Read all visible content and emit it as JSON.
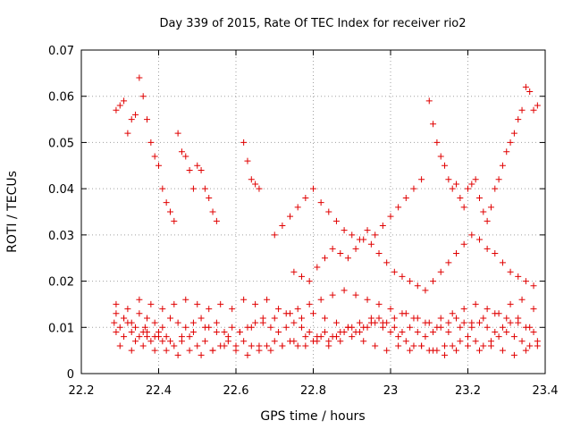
{
  "chart_data": {
    "type": "scatter",
    "title": "Day 339 of 2015, Rate Of TEC Index for receiver rio2",
    "xlabel": "GPS time / hours",
    "ylabel": "ROTI / TECUs",
    "xlim": [
      22.2,
      23.4
    ],
    "ylim": [
      0,
      0.07
    ],
    "x_ticks": [
      "22.2",
      "22.4",
      "22.6",
      "22.8",
      "23",
      "23.2",
      "23.4"
    ],
    "y_ticks": [
      "0",
      "0.01",
      "0.02",
      "0.03",
      "0.04",
      "0.05",
      "0.06",
      "0.07"
    ],
    "grid": true,
    "marker": "+",
    "color": "#e00000",
    "series": [
      {
        "x": [
          22.285,
          22.29,
          22.3,
          22.31,
          22.32,
          22.33,
          22.34,
          22.35,
          22.36,
          22.365,
          22.37,
          22.38,
          22.39,
          22.4,
          22.41,
          22.42,
          22.44,
          22.46,
          22.48,
          22.5,
          22.52,
          22.54,
          22.56,
          22.58,
          22.6,
          22.62,
          22.64,
          22.66,
          22.68,
          22.7,
          22.72,
          22.74,
          22.76,
          22.78,
          22.8,
          22.82,
          22.84,
          22.86,
          22.88,
          22.9,
          22.92,
          22.94,
          22.96,
          22.98,
          23.0,
          23.02,
          23.04,
          23.06,
          23.08,
          23.1,
          23.12,
          23.14,
          23.16,
          23.18,
          23.2,
          23.22,
          23.24,
          23.26,
          23.28,
          23.3,
          23.32,
          23.34,
          23.36,
          23.38,
          22.29,
          22.31,
          22.33,
          22.35,
          22.37,
          22.39,
          22.41,
          22.43,
          22.45,
          22.47,
          22.49,
          22.51,
          22.53,
          22.55,
          22.57,
          22.59,
          22.61,
          22.63,
          22.65,
          22.67,
          22.69,
          22.71,
          22.73,
          22.75,
          22.77,
          22.79,
          22.81,
          22.83,
          22.85,
          22.87,
          22.89,
          22.91,
          22.93,
          22.95,
          22.97,
          22.99,
          23.01,
          23.03,
          23.05,
          23.07,
          23.09,
          23.11,
          23.13,
          23.15,
          23.17,
          23.19,
          23.21,
          23.23,
          23.25,
          23.27,
          23.29,
          23.31,
          23.33,
          23.35,
          23.37,
          22.29,
          22.32,
          22.35,
          22.38,
          22.41,
          22.44,
          22.47,
          22.5,
          22.53,
          22.56,
          22.59,
          22.62,
          22.65,
          22.68,
          22.71,
          22.74,
          22.77,
          22.8,
          22.83,
          22.86,
          22.89,
          22.92,
          22.95,
          22.98,
          23.01,
          23.04,
          23.07,
          23.1,
          23.13,
          23.16,
          23.19,
          23.22,
          23.25,
          23.28,
          23.31,
          23.34,
          23.37,
          22.3,
          22.33,
          22.36,
          22.39,
          22.42,
          22.45,
          22.48,
          22.51,
          22.54,
          22.57,
          22.6,
          22.63,
          22.66,
          22.69,
          22.72,
          22.75,
          22.78,
          22.81,
          22.84,
          22.87,
          22.9,
          22.93,
          22.96,
          22.99,
          23.02,
          23.05,
          23.08,
          23.11,
          23.14,
          23.17,
          23.2,
          23.23,
          23.26,
          23.29,
          23.32,
          23.35,
          23.38,
          22.31,
          22.34,
          22.37,
          22.4,
          22.43,
          22.46,
          22.49,
          22.52,
          22.55,
          22.58,
          22.61,
          22.64,
          22.67,
          22.7,
          22.73,
          22.76,
          22.79,
          22.82,
          22.85,
          22.88,
          22.91,
          22.94,
          22.97,
          23.0,
          23.03,
          23.06,
          23.09,
          23.12,
          23.15,
          23.18,
          23.21,
          23.24,
          23.27,
          23.3,
          23.33,
          23.36,
          22.29,
          22.3,
          22.31,
          22.32,
          22.33,
          22.34,
          22.35,
          22.36,
          22.37,
          22.38,
          22.39,
          22.4,
          22.41,
          22.42,
          22.43,
          22.44,
          22.45,
          22.46,
          22.47,
          22.48,
          22.49,
          22.5,
          22.51,
          22.52,
          22.53,
          22.54,
          22.55,
          22.62,
          22.63,
          22.64,
          22.65,
          22.66,
          23.1,
          23.11,
          23.12,
          23.13,
          23.14,
          23.15,
          23.16,
          23.17,
          23.18,
          23.19,
          23.2,
          23.21,
          23.22,
          23.23,
          23.24,
          23.25,
          23.26,
          23.27,
          23.28,
          23.29,
          23.3,
          23.31,
          23.32,
          23.33,
          23.34,
          23.35,
          23.36,
          23.37,
          23.38,
          22.7,
          22.72,
          22.74,
          22.76,
          22.78,
          22.8,
          22.82,
          22.84,
          22.86,
          22.88,
          22.9,
          22.92,
          22.94,
          22.96,
          22.98,
          23.0,
          23.02,
          23.04,
          23.06,
          23.08,
          22.75,
          22.77,
          22.79,
          22.81,
          22.83,
          22.85,
          22.87,
          22.89,
          22.91,
          22.93,
          22.95,
          22.97,
          22.99,
          23.01,
          23.03,
          23.05,
          23.07,
          23.09,
          23.11,
          23.13,
          23.15,
          23.17,
          23.19,
          23.21,
          23.23,
          23.25,
          23.27,
          23.29,
          23.31,
          23.33,
          23.35,
          23.37
        ],
        "y": [
          0.011,
          0.009,
          0.01,
          0.012,
          0.011,
          0.009,
          0.01,
          0.008,
          0.009,
          0.01,
          0.008,
          0.007,
          0.008,
          0.009,
          0.007,
          0.008,
          0.006,
          0.007,
          0.008,
          0.006,
          0.007,
          0.005,
          0.006,
          0.007,
          0.006,
          0.007,
          0.006,
          0.005,
          0.006,
          0.007,
          0.006,
          0.007,
          0.006,
          0.008,
          0.007,
          0.008,
          0.007,
          0.008,
          0.009,
          0.01,
          0.009,
          0.01,
          0.011,
          0.01,
          0.009,
          0.008,
          0.007,
          0.006,
          0.006,
          0.005,
          0.005,
          0.006,
          0.006,
          0.007,
          0.008,
          0.007,
          0.006,
          0.007,
          0.008,
          0.009,
          0.008,
          0.007,
          0.006,
          0.007,
          0.013,
          0.012,
          0.011,
          0.013,
          0.012,
          0.011,
          0.01,
          0.012,
          0.011,
          0.01,
          0.011,
          0.012,
          0.01,
          0.011,
          0.009,
          0.01,
          0.009,
          0.01,
          0.011,
          0.012,
          0.01,
          0.009,
          0.01,
          0.011,
          0.01,
          0.009,
          0.008,
          0.009,
          0.008,
          0.009,
          0.01,
          0.009,
          0.01,
          0.011,
          0.012,
          0.011,
          0.01,
          0.009,
          0.01,
          0.009,
          0.008,
          0.009,
          0.01,
          0.011,
          0.012,
          0.011,
          0.01,
          0.011,
          0.01,
          0.009,
          0.01,
          0.011,
          0.012,
          0.01,
          0.009,
          0.015,
          0.014,
          0.016,
          0.015,
          0.014,
          0.015,
          0.016,
          0.015,
          0.014,
          0.015,
          0.014,
          0.016,
          0.015,
          0.016,
          0.014,
          0.013,
          0.012,
          0.013,
          0.012,
          0.011,
          0.01,
          0.011,
          0.012,
          0.011,
          0.012,
          0.013,
          0.012,
          0.011,
          0.012,
          0.013,
          0.014,
          0.015,
          0.014,
          0.013,
          0.015,
          0.016,
          0.014,
          0.006,
          0.005,
          0.006,
          0.005,
          0.005,
          0.004,
          0.005,
          0.004,
          0.005,
          0.006,
          0.005,
          0.004,
          0.006,
          0.005,
          0.006,
          0.007,
          0.006,
          0.007,
          0.006,
          0.007,
          0.008,
          0.007,
          0.006,
          0.005,
          0.006,
          0.005,
          0.006,
          0.005,
          0.004,
          0.005,
          0.006,
          0.005,
          0.006,
          0.005,
          0.004,
          0.005,
          0.006,
          0.008,
          0.007,
          0.009,
          0.008,
          0.007,
          0.008,
          0.009,
          0.01,
          0.009,
          0.008,
          0.009,
          0.01,
          0.011,
          0.012,
          0.013,
          0.014,
          0.015,
          0.016,
          0.017,
          0.018,
          0.017,
          0.016,
          0.015,
          0.014,
          0.013,
          0.012,
          0.011,
          0.01,
          0.009,
          0.01,
          0.011,
          0.012,
          0.013,
          0.012,
          0.011,
          0.01,
          0.057,
          0.058,
          0.059,
          0.052,
          0.055,
          0.056,
          0.064,
          0.06,
          0.055,
          0.05,
          0.047,
          0.045,
          0.04,
          0.037,
          0.035,
          0.033,
          0.052,
          0.048,
          0.047,
          0.044,
          0.04,
          0.045,
          0.044,
          0.04,
          0.038,
          0.035,
          0.033,
          0.05,
          0.046,
          0.042,
          0.041,
          0.04,
          0.059,
          0.054,
          0.05,
          0.047,
          0.045,
          0.042,
          0.04,
          0.041,
          0.038,
          0.036,
          0.04,
          0.041,
          0.042,
          0.038,
          0.035,
          0.033,
          0.036,
          0.04,
          0.042,
          0.045,
          0.048,
          0.05,
          0.052,
          0.055,
          0.057,
          0.062,
          0.061,
          0.057,
          0.058,
          0.03,
          0.032,
          0.034,
          0.036,
          0.038,
          0.04,
          0.037,
          0.035,
          0.033,
          0.031,
          0.03,
          0.029,
          0.031,
          0.03,
          0.032,
          0.034,
          0.036,
          0.038,
          0.04,
          0.042,
          0.022,
          0.021,
          0.02,
          0.023,
          0.025,
          0.027,
          0.026,
          0.025,
          0.027,
          0.029,
          0.028,
          0.026,
          0.024,
          0.022,
          0.021,
          0.02,
          0.019,
          0.018,
          0.02,
          0.022,
          0.024,
          0.026,
          0.028,
          0.03,
          0.029,
          0.027,
          0.026,
          0.024,
          0.022,
          0.021,
          0.02,
          0.019
        ]
      }
    ]
  }
}
